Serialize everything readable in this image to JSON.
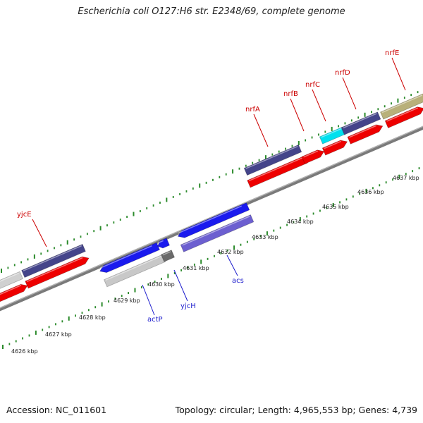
{
  "title": "Escherichia coli O127:H6 str. E2348/69, complete genome",
  "footer": {
    "accession": "Accession: NC_011601",
    "summary": "Topology: circular; Length: 4,965,553 bp; Genes: 4,739"
  },
  "colors": {
    "forward_cds": "#ee0000",
    "forward_gene_top": "#44448a",
    "reverse_cds": "#1a1aee",
    "reverse_gene": "#6c5fd0",
    "grey_feature": "#c8c8c8",
    "tick": "#2a8a2a",
    "label_forward": "#cc0000",
    "label_reverse": "#1a1acc",
    "nrfC_box": "#00e0ee",
    "nrfE_box": "#b8b07a"
  },
  "kbp_labels": [
    "4626 kbp",
    "4627 kbp",
    "4628 kbp",
    "4629 kbp",
    "4630 kbp",
    "4631 kbp",
    "4632 kbp",
    "4633 kbp",
    "4634 kbp",
    "4635 kbp",
    "4636 kbp",
    "4637 kbp"
  ],
  "forward_labels": [
    "yjcE",
    "nrfA",
    "nrfB",
    "nrfC",
    "nrfD",
    "nrfE"
  ],
  "reverse_labels": [
    "actP",
    "yjcH",
    "acs"
  ]
}
